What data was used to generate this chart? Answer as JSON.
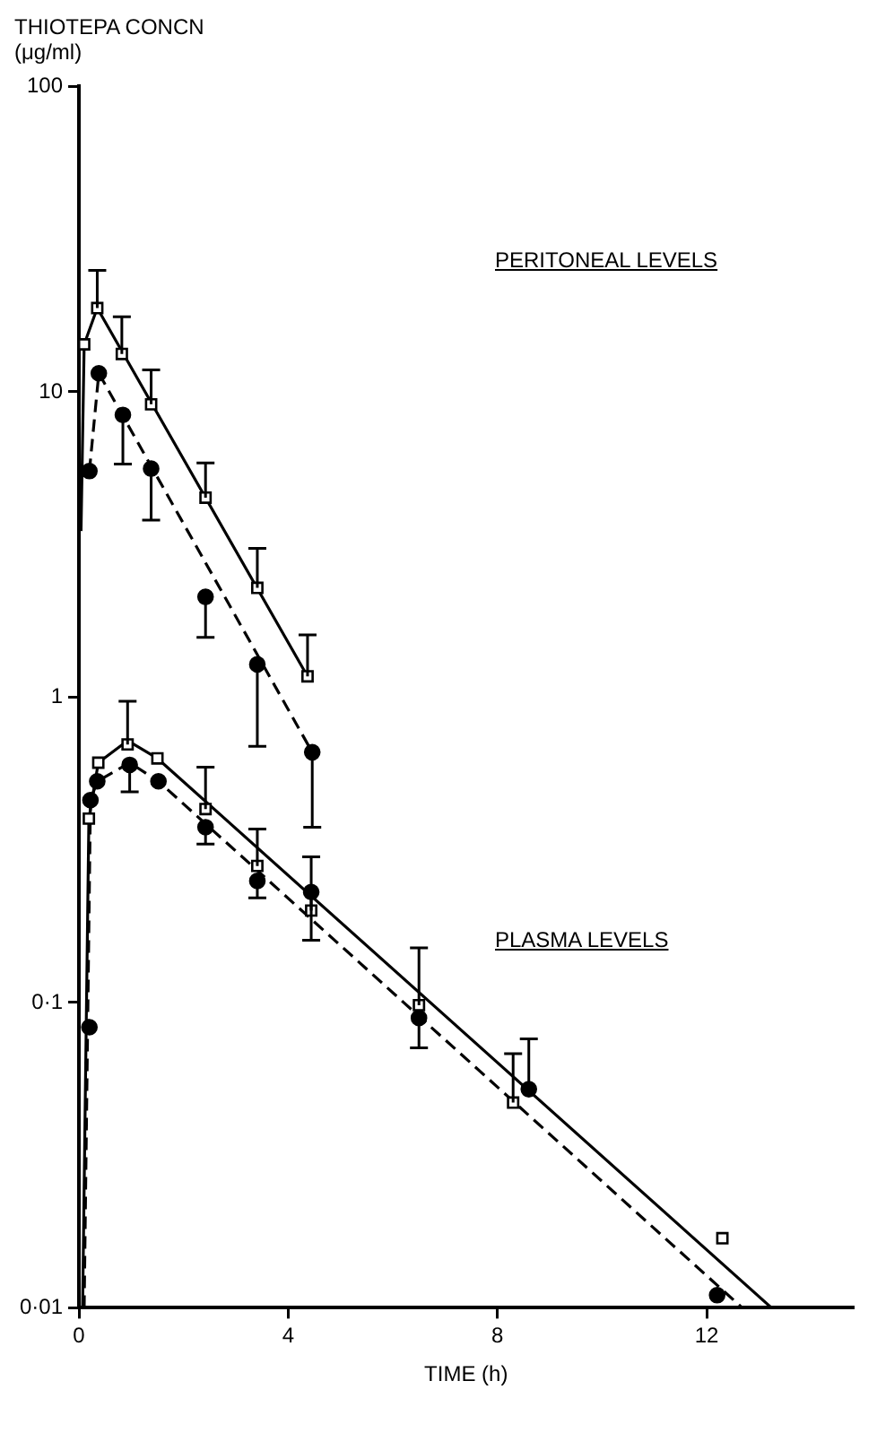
{
  "chart_data": {
    "type": "scatter",
    "ylabel": "THIOTEPA CONCN\n(μg/ml)",
    "xlabel": "TIME (h)",
    "log": "y",
    "xlim": [
      0,
      14.8
    ],
    "ylim": [
      0.01,
      100
    ],
    "xticks": [
      0,
      4,
      8,
      12
    ],
    "yticks": [
      100,
      10,
      1,
      {
        "value": 0.1,
        "label": "0·1"
      },
      {
        "value": 0.01,
        "label": "0·01"
      }
    ],
    "annotations": [
      "PERITONEAL LEVELS",
      "PLASMA LEVELS"
    ],
    "series": [
      {
        "color": "#000000",
        "marker": "square",
        "x": [
          0.1,
          0.35,
          0.82,
          1.38,
          2.42,
          3.41,
          4.37
        ],
        "values": [
          14.3,
          18.8,
          13.3,
          9.1,
          4.5,
          2.28,
          1.17
        ],
        "errors": [
          null,
          [
            18.8,
            25
          ],
          [
            13.3,
            17.6
          ],
          [
            9.1,
            11.8
          ],
          [
            4.5,
            5.85
          ],
          [
            2.28,
            3.07
          ],
          [
            1.17,
            1.6
          ]
        ]
      },
      {
        "color": "#000000",
        "marker": "circle",
        "x": [
          0.2,
          0.38,
          0.84,
          1.38,
          2.42,
          3.41,
          4.46
        ],
        "values": [
          5.5,
          11.5,
          8.4,
          5.6,
          2.13,
          1.28,
          0.66
        ],
        "errors": [
          null,
          null,
          [
            5.8,
            8.4
          ],
          [
            3.8,
            5.6
          ],
          [
            1.57,
            2.13
          ],
          [
            0.69,
            1.28
          ],
          [
            0.375,
            0.66
          ]
        ]
      },
      {
        "color": "#000000",
        "marker": "square",
        "x": [
          0.19,
          0.37,
          0.93,
          1.5,
          2.42,
          3.41,
          4.44,
          6.5,
          8.3,
          12.3
        ],
        "values": [
          0.4,
          0.61,
          0.7,
          0.63,
          0.43,
          0.28,
          0.2,
          0.098,
          0.047,
          0.0169
        ],
        "errors": [
          null,
          null,
          [
            0.7,
            0.97
          ],
          null,
          [
            0.43,
            0.59
          ],
          [
            0.28,
            0.37
          ],
          [
            0.2,
            0.3
          ],
          [
            0.098,
            0.151
          ],
          [
            0.047,
            0.068
          ],
          null
        ]
      },
      {
        "color": "#000000",
        "marker": "circle",
        "x": [
          0.2,
          0.22,
          0.35,
          0.97,
          1.52,
          2.42,
          3.41,
          4.44,
          6.5,
          8.6,
          12.2
        ],
        "values": [
          0.083,
          0.46,
          0.53,
          0.6,
          0.53,
          0.375,
          0.25,
          0.23,
          0.089,
          0.052,
          0.011
        ],
        "errors": [
          null,
          null,
          null,
          [
            0.49,
            0.6
          ],
          null,
          [
            0.33,
            0.375
          ],
          [
            0.22,
            0.25
          ],
          [
            0.16,
            0.23
          ],
          [
            0.071,
            0.089
          ],
          [
            0.052,
            0.076
          ],
          null
        ]
      },
      {
        "type": "line",
        "color": "#000000",
        "marker": "none",
        "line_style": "solid",
        "x": [
          0.04,
          0.1,
          0.35,
          4.37
        ],
        "values": [
          3.5,
          14.3,
          18.8,
          1.17
        ]
      },
      {
        "type": "line",
        "color": "#000000",
        "marker": "none",
        "line_style": "dashed",
        "x": [
          0.2,
          0.38,
          4.46
        ],
        "values": [
          5.5,
          11.5,
          0.66
        ]
      },
      {
        "type": "line",
        "color": "#000000",
        "marker": "none",
        "line_style": "solid",
        "x": [
          0.07,
          0.19,
          0.37,
          0.93,
          1.5,
          13.24
        ],
        "values": [
          0.01,
          0.4,
          0.61,
          0.72,
          0.63,
          0.01
        ]
      },
      {
        "type": "line",
        "color": "#000000",
        "marker": "none",
        "line_style": "dashed",
        "x": [
          0.1,
          0.22,
          0.35,
          0.97,
          1.52,
          12.68
        ],
        "values": [
          0.01,
          0.46,
          0.53,
          0.61,
          0.53,
          0.01
        ]
      }
    ]
  }
}
